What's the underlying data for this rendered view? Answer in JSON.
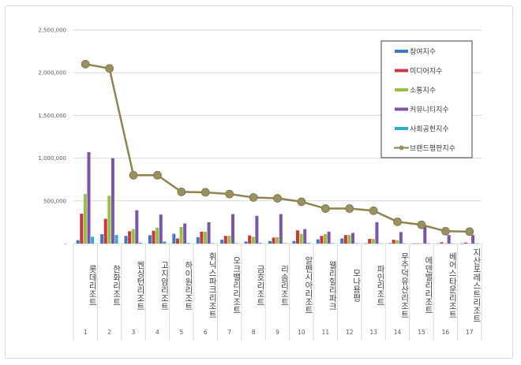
{
  "chart_data": {
    "type": "bar",
    "title": "",
    "xlabel": "",
    "ylabel": "",
    "ylim": [
      0,
      2500000
    ],
    "yticks": [
      "-",
      "500,000",
      "1,000,000",
      "1,500,000",
      "2,000,000",
      "2,500,000"
    ],
    "grid": true,
    "legend_position": "top-right",
    "categories": [
      "1",
      "2",
      "3",
      "4",
      "5",
      "6",
      "7",
      "8",
      "9",
      "10",
      "11",
      "12",
      "13",
      "14",
      "15",
      "16",
      "17"
    ],
    "category_names": [
      "롯데리조트",
      "한화리조트",
      "켄싱턴리조트",
      "고지암리조트",
      "하이원리조트",
      "휘닉스파크리조트",
      "오크밸리리조트",
      "금호리조트",
      "리솜리조트",
      "알펜시아리조트",
      "웰리힐리파크",
      "모나용평",
      "파인리조트",
      "무주덕유산리조트",
      "에덴밸리리조트",
      "베어스타운리조트",
      "지산포레스트리조트"
    ],
    "series": [
      {
        "name": "참여지수",
        "type": "bar",
        "color": "#3f79c4",
        "values": [
          40000,
          110000,
          90000,
          98000,
          115000,
          75000,
          45000,
          25000,
          30000,
          30000,
          50000,
          60000,
          3000,
          5000,
          2000,
          2000,
          2000
        ]
      },
      {
        "name": "미디어지수",
        "type": "bar",
        "color": "#c8383a",
        "values": [
          350000,
          290000,
          145000,
          150000,
          60000,
          140000,
          90000,
          95000,
          70000,
          155000,
          90000,
          100000,
          55000,
          45000,
          3000,
          15000,
          12000
        ]
      },
      {
        "name": "소통지수",
        "type": "bar",
        "color": "#98bf45",
        "values": [
          580000,
          560000,
          170000,
          185000,
          195000,
          140000,
          90000,
          80000,
          75000,
          115000,
          110000,
          100000,
          55000,
          40000,
          2000,
          3000,
          5000
        ]
      },
      {
        "name": "커뮤니티지수",
        "type": "bar",
        "color": "#7a56a8",
        "values": [
          1070000,
          1000000,
          390000,
          340000,
          235000,
          250000,
          345000,
          325000,
          345000,
          170000,
          140000,
          125000,
          250000,
          135000,
          200000,
          100000,
          100000
        ]
      },
      {
        "name": "사회공헌지수",
        "type": "bar",
        "color": "#36a9c6",
        "values": [
          80000,
          100000,
          10000,
          25000,
          8000,
          5000,
          5000,
          8000,
          5000,
          8000,
          5000,
          5000,
          3000,
          3000,
          2000,
          2000,
          2000
        ]
      },
      {
        "name": "브랜드평판지수",
        "type": "line",
        "color": "#8c8452",
        "values": [
          2100000,
          2050000,
          800000,
          800000,
          605000,
          600000,
          580000,
          540000,
          530000,
          490000,
          410000,
          410000,
          385000,
          255000,
          220000,
          145000,
          140000
        ]
      }
    ]
  }
}
